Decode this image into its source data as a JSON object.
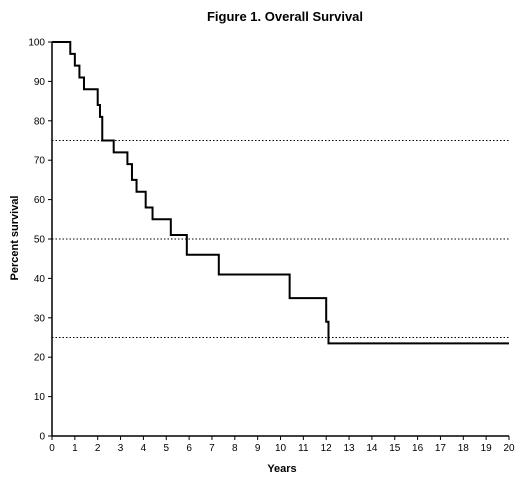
{
  "chart_data": {
    "type": "line",
    "title": "Figure 1. Overall Survival",
    "xlabel": "Years",
    "ylabel": "Percent survival",
    "xlim": [
      0,
      20
    ],
    "ylim": [
      0,
      100
    ],
    "x_ticks": [
      0,
      1,
      2,
      3,
      4,
      5,
      6,
      7,
      8,
      9,
      10,
      11,
      12,
      13,
      14,
      15,
      16,
      17,
      18,
      19,
      20
    ],
    "y_ticks": [
      0,
      10,
      20,
      30,
      40,
      50,
      60,
      70,
      80,
      90,
      100
    ],
    "grid": false,
    "reference_lines": [
      75,
      50,
      25
    ],
    "series": [
      {
        "step": true,
        "color": "#000000",
        "x": [
          0,
          0.8,
          1.0,
          1.2,
          1.4,
          2.0,
          2.1,
          2.2,
          2.7,
          3.3,
          3.5,
          3.7,
          4.1,
          4.4,
          5.2,
          5.9,
          7.3,
          10.4,
          12.0,
          12.1,
          20.0
        ],
        "y": [
          100,
          97,
          94,
          91,
          88,
          84,
          81,
          75,
          72,
          69,
          65,
          62,
          58,
          55,
          51,
          46,
          41,
          35,
          29,
          23.5,
          23.5
        ]
      }
    ]
  }
}
